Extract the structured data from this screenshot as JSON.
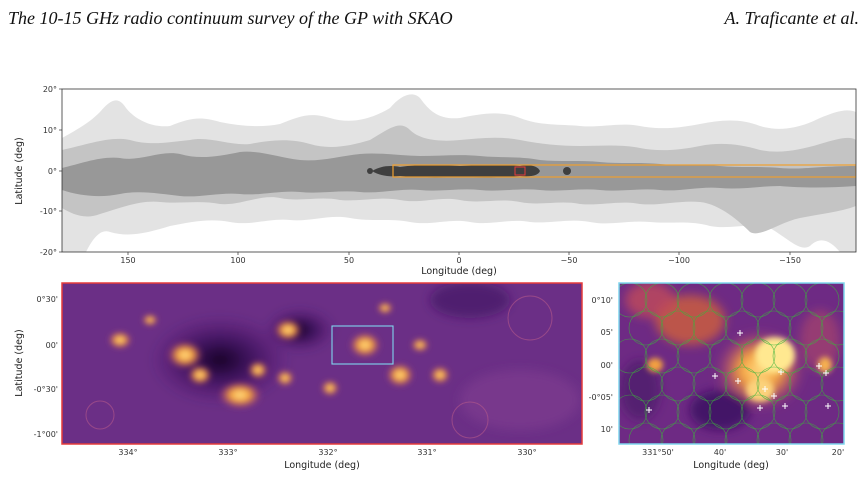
{
  "header": {
    "title": "The 10-15 GHz radio continuum survey of the GP with SKAO",
    "authors": "A. Traficante et al."
  },
  "colors": {
    "survey_box": "#f0a030",
    "zoom1_frame": "#e53b3b",
    "zoom2_frame": "#7fd6ee",
    "pointing_circles": "#3cb33c",
    "markers": "#ffffff"
  },
  "panels": {
    "top": {
      "xlabel": "Longitude (deg)",
      "ylabel": "Latitude (deg)",
      "xticks": [
        "150",
        "100",
        "50",
        "0",
        "−50",
        "−100",
        "−150"
      ],
      "yticks": [
        "20°",
        "10°",
        "0°",
        "-10°",
        "-20°"
      ]
    },
    "zoom1": {
      "xlabel": "Longitude (deg)",
      "ylabel": "Latitude (deg)",
      "xticks": [
        "334°",
        "333°",
        "332°",
        "331°",
        "330°"
      ],
      "yticks": [
        "0°30'",
        "00'",
        "-0°30'",
        "-1°00'"
      ]
    },
    "zoom2": {
      "xlabel": "Longitude (deg)",
      "xticks": [
        "331°50'",
        "40'",
        "30'",
        "20'"
      ],
      "yticks": [
        "0°10'",
        "05'",
        "00'",
        "-0°05'",
        "10'"
      ]
    }
  }
}
